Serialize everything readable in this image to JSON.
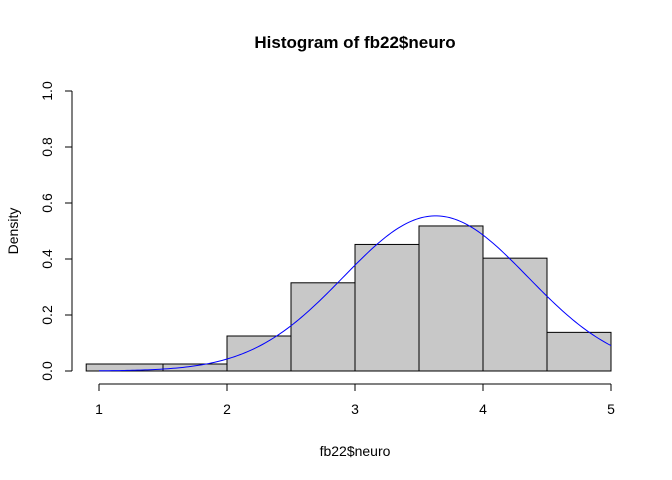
{
  "chart_data": {
    "type": "bar",
    "title": "Histogram of fb22$neuro",
    "xlabel": "fb22$neuro",
    "ylabel": "Density",
    "xlim": [
      1,
      5
    ],
    "ylim": [
      0,
      1
    ],
    "x_ticks": [
      "1",
      "2",
      "3",
      "4",
      "5"
    ],
    "y_ticks": [
      "0.0",
      "0.2",
      "0.4",
      "0.6",
      "0.8",
      "1.0"
    ],
    "bins": [
      {
        "start": 0.9,
        "end": 1.5,
        "density": 0.025
      },
      {
        "start": 1.5,
        "end": 2.0,
        "density": 0.025
      },
      {
        "start": 2.0,
        "end": 2.5,
        "density": 0.125
      },
      {
        "start": 2.5,
        "end": 3.0,
        "density": 0.315
      },
      {
        "start": 3.0,
        "end": 3.5,
        "density": 0.452
      },
      {
        "start": 3.5,
        "end": 4.0,
        "density": 0.518
      },
      {
        "start": 4.0,
        "end": 4.5,
        "density": 0.403
      },
      {
        "start": 4.5,
        "end": 5.0,
        "density": 0.138
      }
    ],
    "density_curve": {
      "type": "normal",
      "mean": 3.63,
      "sd": 0.72,
      "x_range": [
        1.0,
        5.0
      ],
      "color": "#0000ff"
    },
    "bar_color": "#c8c8c8",
    "grid": false
  }
}
